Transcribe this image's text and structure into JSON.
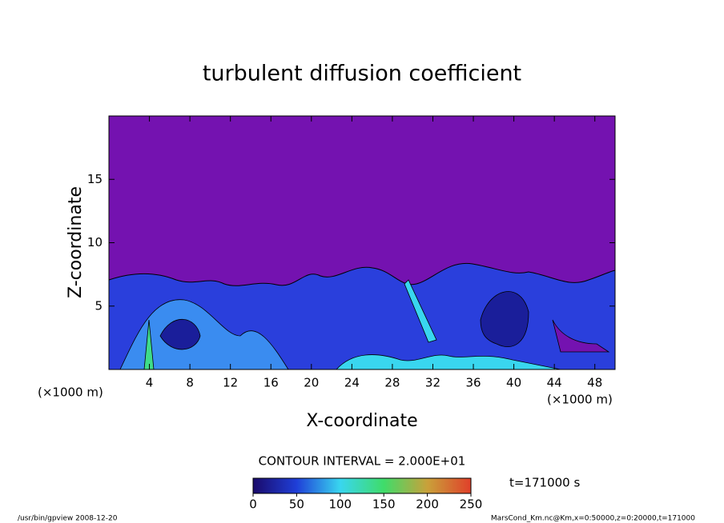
{
  "chart_data": {
    "type": "contour",
    "title": "turbulent diffusion coefficient",
    "x_label": "X-coordinate",
    "y_label": "Z-coordinate",
    "x_unit_label": "(×1000 m)",
    "xlim": [
      0,
      50
    ],
    "xticks": [
      4,
      8,
      12,
      16,
      20,
      24,
      28,
      32,
      36,
      40,
      44,
      48
    ],
    "ylim": [
      0,
      20
    ],
    "yticks": [
      5,
      10,
      15
    ],
    "contour_interval_label": "CONTOUR INTERVAL = 2.000E+01",
    "time_label": "t=171000 s",
    "colorbar": {
      "lim": [
        0,
        250
      ],
      "ticks": [
        0,
        50,
        100,
        150,
        200,
        250
      ]
    }
  },
  "footer": {
    "left": "/usr/bin/gpview  2008-12-20",
    "right": "MarsCond_Km.nc@Km,x=0:50000,z=0:20000,t=171000"
  }
}
